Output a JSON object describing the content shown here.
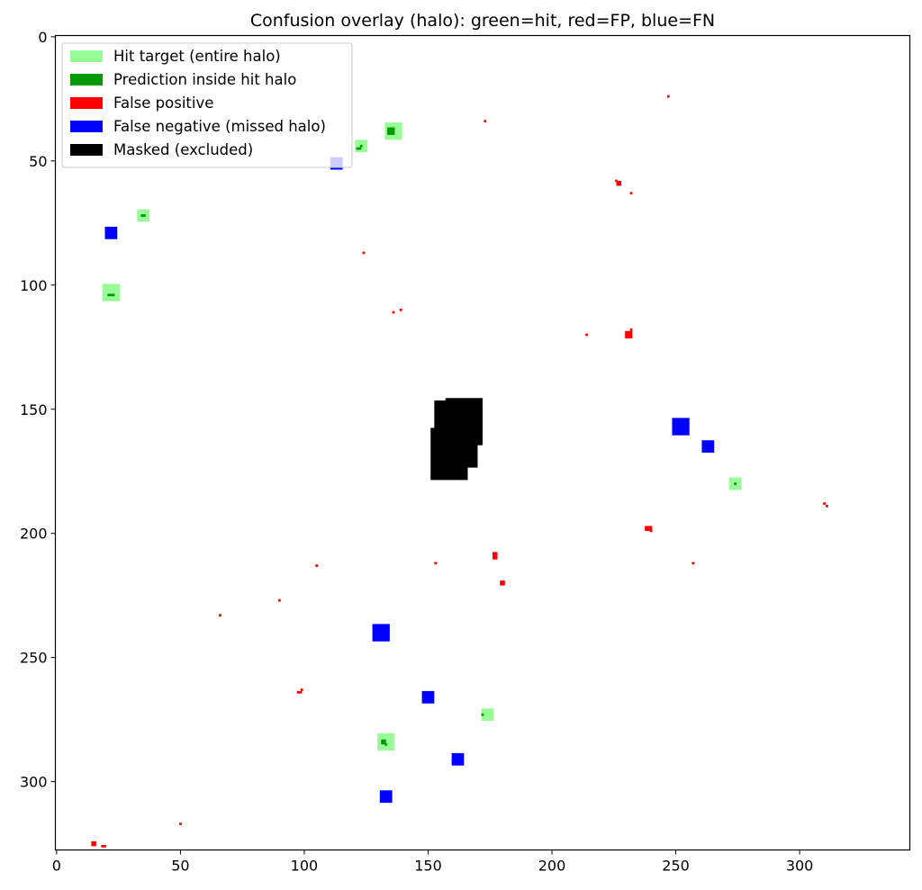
{
  "chart_data": {
    "type": "heatmap",
    "title": "Confusion overlay (halo): green=hit, red=FP, blue=FN",
    "xlabel": "",
    "ylabel": "",
    "xlim": [
      -0.5,
      344.5
    ],
    "ylim": [
      327.5,
      -0.5
    ],
    "y_inverted": true,
    "grid": false,
    "x_ticks": [
      0,
      50,
      100,
      150,
      200,
      250,
      300
    ],
    "y_ticks": [
      0,
      50,
      100,
      150,
      200,
      250,
      300
    ],
    "legend": {
      "position": "upper-left",
      "entries": [
        {
          "label": "Hit target (entire halo)",
          "color": "#98fb98"
        },
        {
          "label": "Prediction inside hit halo",
          "color": "#009900"
        },
        {
          "label": "False positive",
          "color": "#ff0000"
        },
        {
          "label": "False negative (missed halo)",
          "color": "#0000ff"
        },
        {
          "label": "Masked (excluded)",
          "color": "#000000"
        }
      ]
    },
    "series": [
      {
        "name": "Hit target (entire halo)",
        "color": "#98fb98",
        "cells": [
          {
            "x": 136,
            "y": 38,
            "w": 7,
            "h": 7
          },
          {
            "x": 123,
            "y": 44,
            "w": 5,
            "h": 5
          },
          {
            "x": 35,
            "y": 72,
            "w": 5,
            "h": 5
          },
          {
            "x": 22,
            "y": 103,
            "w": 7,
            "h": 7
          },
          {
            "x": 274,
            "y": 180,
            "w": 5,
            "h": 5
          },
          {
            "x": 174,
            "y": 273,
            "w": 5,
            "h": 5
          },
          {
            "x": 133,
            "y": 284,
            "w": 7,
            "h": 7
          }
        ]
      },
      {
        "name": "Prediction inside hit halo",
        "color": "#009900",
        "cells": [
          {
            "x": 135,
            "y": 38,
            "w": 3,
            "h": 3
          },
          {
            "x": 136,
            "y": 37,
            "w": 1,
            "h": 1
          },
          {
            "x": 122,
            "y": 45,
            "w": 2,
            "h": 1
          },
          {
            "x": 123,
            "y": 44,
            "w": 1,
            "h": 1
          },
          {
            "x": 35,
            "y": 72,
            "w": 2,
            "h": 1
          },
          {
            "x": 22,
            "y": 104,
            "w": 3,
            "h": 1
          },
          {
            "x": 274,
            "y": 180,
            "w": 1,
            "h": 1
          },
          {
            "x": 172,
            "y": 273,
            "w": 1,
            "h": 1
          },
          {
            "x": 132,
            "y": 284,
            "w": 2,
            "h": 2
          },
          {
            "x": 133,
            "y": 285,
            "w": 1,
            "h": 1
          }
        ]
      },
      {
        "name": "False negative (missed halo)",
        "color": "#0000ff",
        "cells": [
          {
            "x": 113,
            "y": 51,
            "w": 5,
            "h": 5
          },
          {
            "x": 22,
            "y": 79,
            "w": 5,
            "h": 5
          },
          {
            "x": 252,
            "y": 157,
            "w": 7,
            "h": 7
          },
          {
            "x": 263,
            "y": 165,
            "w": 5,
            "h": 5
          },
          {
            "x": 131,
            "y": 240,
            "w": 7,
            "h": 7
          },
          {
            "x": 150,
            "y": 266,
            "w": 5,
            "h": 5
          },
          {
            "x": 162,
            "y": 291,
            "w": 5,
            "h": 5
          },
          {
            "x": 133,
            "y": 306,
            "w": 5,
            "h": 5
          }
        ]
      },
      {
        "name": "False positive",
        "color": "#ff0000",
        "cells": [
          {
            "x": 247,
            "y": 24,
            "w": 1,
            "h": 1
          },
          {
            "x": 173,
            "y": 34,
            "w": 1,
            "h": 1
          },
          {
            "x": 226,
            "y": 58,
            "w": 1,
            "h": 1
          },
          {
            "x": 227,
            "y": 59,
            "w": 2,
            "h": 2
          },
          {
            "x": 232,
            "y": 63,
            "w": 1,
            "h": 1
          },
          {
            "x": 124,
            "y": 87,
            "w": 1,
            "h": 1
          },
          {
            "x": 136,
            "y": 111,
            "w": 1,
            "h": 1
          },
          {
            "x": 139,
            "y": 110,
            "w": 1,
            "h": 1
          },
          {
            "x": 214,
            "y": 120,
            "w": 1,
            "h": 1
          },
          {
            "x": 231,
            "y": 120,
            "w": 3,
            "h": 3
          },
          {
            "x": 232,
            "y": 118,
            "w": 1,
            "h": 1
          },
          {
            "x": 310,
            "y": 188,
            "w": 1,
            "h": 1
          },
          {
            "x": 311,
            "y": 189,
            "w": 1,
            "h": 1
          },
          {
            "x": 239,
            "y": 198,
            "w": 3,
            "h": 2
          },
          {
            "x": 240,
            "y": 199,
            "w": 1,
            "h": 1
          },
          {
            "x": 177,
            "y": 209,
            "w": 2,
            "h": 3
          },
          {
            "x": 105,
            "y": 213,
            "w": 1,
            "h": 1
          },
          {
            "x": 153,
            "y": 212,
            "w": 1,
            "h": 1
          },
          {
            "x": 257,
            "y": 212,
            "w": 1,
            "h": 1
          },
          {
            "x": 180,
            "y": 220,
            "w": 2,
            "h": 2
          },
          {
            "x": 90,
            "y": 227,
            "w": 1,
            "h": 1
          },
          {
            "x": 66,
            "y": 233,
            "w": 1,
            "h": 1
          },
          {
            "x": 98,
            "y": 264,
            "w": 2,
            "h": 1
          },
          {
            "x": 99,
            "y": 263,
            "w": 1,
            "h": 1
          },
          {
            "x": 50,
            "y": 317,
            "w": 1,
            "h": 1
          },
          {
            "x": 15,
            "y": 325,
            "w": 2,
            "h": 2
          },
          {
            "x": 19,
            "y": 326,
            "w": 2,
            "h": 1
          }
        ]
      },
      {
        "name": "Masked (excluded)",
        "color": "#000000",
        "cells": [
          {
            "x": 156.5,
            "y": 155.5,
            "w": 8,
            "h": 18
          },
          {
            "x": 164.5,
            "y": 155,
            "w": 15,
            "h": 19
          },
          {
            "x": 158.5,
            "y": 168,
            "w": 15,
            "h": 21
          },
          {
            "x": 167.5,
            "y": 165,
            "w": 5,
            "h": 17
          }
        ]
      }
    ]
  }
}
